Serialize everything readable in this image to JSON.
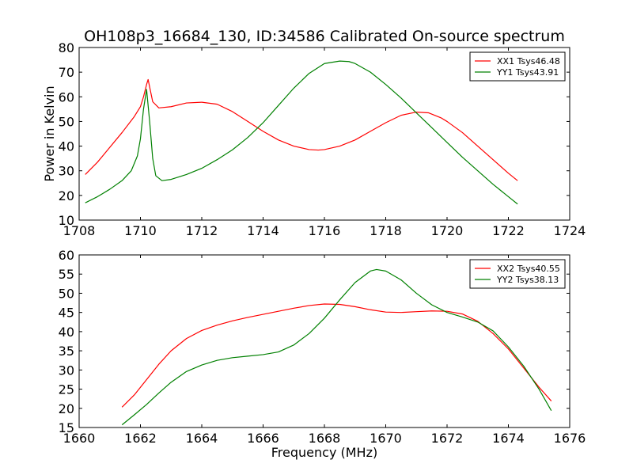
{
  "title": "OH108p3_16684_130, ID:34586 Calibrated On-source spectrum",
  "colors": {
    "red": "#ff0000",
    "green": "#008000"
  },
  "chart_data": [
    {
      "type": "line",
      "ylabel": "Power in Kelvin",
      "xlabel": "",
      "xlim": [
        1708,
        1724
      ],
      "ylim": [
        10,
        80
      ],
      "xticks": [
        1708,
        1710,
        1712,
        1714,
        1716,
        1718,
        1720,
        1722,
        1724
      ],
      "yticks": [
        10,
        20,
        30,
        40,
        50,
        60,
        70,
        80
      ],
      "grid": false,
      "legend": "top-right",
      "series": [
        {
          "name": "XX1 Tsys46.48",
          "color": "#ff0000",
          "x": [
            1708.2,
            1708.6,
            1709.0,
            1709.4,
            1709.8,
            1710.0,
            1710.1,
            1710.2,
            1710.25,
            1710.3,
            1710.4,
            1710.6,
            1711.0,
            1711.5,
            1712.0,
            1712.5,
            1713.0,
            1713.5,
            1714.0,
            1714.5,
            1715.0,
            1715.5,
            1715.8,
            1716.0,
            1716.5,
            1717.0,
            1717.5,
            1718.0,
            1718.5,
            1719.0,
            1719.4,
            1719.8,
            1720.0,
            1720.5,
            1721.0,
            1721.5,
            1722.0,
            1722.3
          ],
          "y": [
            28.5,
            33.5,
            39.5,
            45.5,
            52,
            56,
            60,
            65,
            67,
            64,
            58,
            55.5,
            56,
            57.5,
            57.8,
            57,
            54,
            50,
            46,
            42.5,
            40,
            38.6,
            38.4,
            38.6,
            40,
            42.5,
            46,
            49.5,
            52.5,
            53.8,
            53.5,
            51.5,
            50,
            45.5,
            40,
            34.5,
            29,
            26
          ]
        },
        {
          "name": "YY1 Tsys43.91",
          "color": "#008000",
          "x": [
            1708.2,
            1708.6,
            1709.0,
            1709.4,
            1709.7,
            1709.9,
            1710.0,
            1710.1,
            1710.2,
            1710.3,
            1710.4,
            1710.5,
            1710.7,
            1711.0,
            1711.5,
            1712.0,
            1712.5,
            1713.0,
            1713.5,
            1714.0,
            1714.5,
            1715.0,
            1715.5,
            1716.0,
            1716.5,
            1716.8,
            1717.0,
            1717.5,
            1718.0,
            1718.5,
            1719.0,
            1719.5,
            1720.0,
            1720.5,
            1721.0,
            1721.5,
            1722.0,
            1722.3
          ],
          "y": [
            17,
            19.5,
            22.5,
            26,
            30,
            36,
            43,
            55,
            63,
            50,
            35,
            28,
            26,
            26.5,
            28.5,
            31,
            34.5,
            38.5,
            43.5,
            49.5,
            56.5,
            63.5,
            69.5,
            73.5,
            74.5,
            74.3,
            73.5,
            70,
            65,
            59.5,
            53.5,
            47.5,
            41.5,
            35.5,
            30,
            24.5,
            19.5,
            16.5
          ]
        }
      ]
    },
    {
      "type": "line",
      "xlabel": "Frequency (MHz)",
      "ylabel": "",
      "xlim": [
        1660,
        1676
      ],
      "ylim": [
        15,
        60
      ],
      "xticks": [
        1660,
        1662,
        1664,
        1666,
        1668,
        1670,
        1672,
        1674,
        1676
      ],
      "yticks": [
        15,
        20,
        25,
        30,
        35,
        40,
        45,
        50,
        55,
        60
      ],
      "grid": false,
      "legend": "top-right",
      "series": [
        {
          "name": "XX2 Tsys40.55",
          "color": "#ff0000",
          "x": [
            1661.4,
            1661.8,
            1662.2,
            1662.6,
            1663.0,
            1663.5,
            1664.0,
            1664.5,
            1665.0,
            1665.5,
            1666.0,
            1666.5,
            1667.0,
            1667.5,
            1668.0,
            1668.5,
            1669.0,
            1669.5,
            1670.0,
            1670.5,
            1671.0,
            1671.5,
            1672.0,
            1672.5,
            1673.0,
            1673.5,
            1674.0,
            1674.5,
            1675.0,
            1675.4
          ],
          "y": [
            20.3,
            23.5,
            27.5,
            31.5,
            35,
            38.2,
            40.3,
            41.7,
            42.8,
            43.7,
            44.5,
            45.3,
            46.1,
            46.8,
            47.2,
            47.1,
            46.5,
            45.7,
            45.1,
            45,
            45.2,
            45.4,
            45.3,
            44.6,
            42.7,
            39.5,
            35.5,
            30.5,
            25.5,
            21.9
          ]
        },
        {
          "name": "YY2 Tsys38.13",
          "color": "#008000",
          "x": [
            1661.4,
            1661.8,
            1662.2,
            1662.6,
            1663.0,
            1663.5,
            1664.0,
            1664.5,
            1665.0,
            1665.5,
            1666.0,
            1666.5,
            1667.0,
            1667.5,
            1668.0,
            1668.5,
            1669.0,
            1669.5,
            1669.7,
            1670.0,
            1670.5,
            1671.0,
            1671.5,
            1672.0,
            1672.5,
            1673.0,
            1673.5,
            1674.0,
            1674.5,
            1675.0,
            1675.4
          ],
          "y": [
            15.7,
            18.3,
            21,
            24,
            26.8,
            29.6,
            31.3,
            32.5,
            33.2,
            33.6,
            34,
            34.7,
            36.5,
            39.5,
            43.5,
            48.3,
            52.8,
            55.8,
            56.2,
            55.8,
            53.5,
            50,
            47,
            45,
            43.8,
            42.5,
            40.2,
            36,
            31,
            25,
            19.4
          ]
        }
      ]
    }
  ]
}
